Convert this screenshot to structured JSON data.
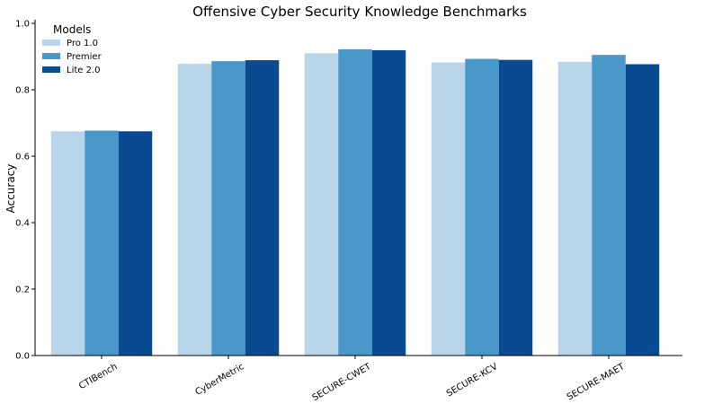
{
  "chart_data": {
    "type": "bar",
    "title": "Offensive Cyber Security Knowledge Benchmarks",
    "xlabel": "",
    "ylabel": "Accuracy",
    "ylim": [
      0,
      1.0
    ],
    "yticks": [
      "0.0",
      "0.2",
      "0.4",
      "0.6",
      "0.8",
      "1.0"
    ],
    "grid": false,
    "legend": {
      "title": "Models",
      "placement": "top-left"
    },
    "categories": [
      "CTIBench",
      "CyberMetric",
      "SECURE-CWET",
      "SECURE-KCV",
      "SECURE-MAET"
    ],
    "series": [
      {
        "name": "Pro 1.0",
        "color": "#b9d5ea",
        "values": [
          0.675,
          0.878,
          0.91,
          0.882,
          0.884
        ]
      },
      {
        "name": "Premier",
        "color": "#4a98c9",
        "values": [
          0.677,
          0.886,
          0.922,
          0.893,
          0.905
        ]
      },
      {
        "name": "Lite 2.0",
        "color": "#0a4a90",
        "values": [
          0.675,
          0.889,
          0.919,
          0.89,
          0.877
        ]
      }
    ]
  }
}
